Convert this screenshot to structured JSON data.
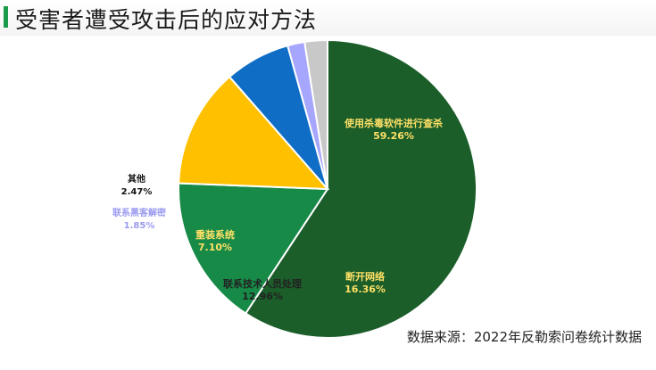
{
  "header": {
    "title": "受害者遭受攻击后的应对方法",
    "accent_color": "#1a9b4a"
  },
  "footer": {
    "source": "数据来源：2022年反勒索问卷统计数据"
  },
  "chart_data": {
    "type": "pie",
    "slices": [
      {
        "label": "使用杀毒软件进行查杀",
        "value": 59.26,
        "value_text": "59.26%",
        "color": "#1b5e2a",
        "text_color": "#ffe066"
      },
      {
        "label": "断开网络",
        "value": 16.36,
        "value_text": "16.36%",
        "color": "#178a48",
        "text_color": "#ffe066"
      },
      {
        "label": "联系技术人员处理",
        "value": 12.96,
        "value_text": "12.96%",
        "color": "#ffc000",
        "text_color": "#222222"
      },
      {
        "label": "重装系统",
        "value": 7.1,
        "value_text": "7.10%",
        "color": "#0f6dc6",
        "text_color": "#ffe066"
      },
      {
        "label": "联系黑客解密",
        "value": 1.85,
        "value_text": "1.85%",
        "color": "#a6a6ff",
        "text_color": "#9a9af0"
      },
      {
        "label": "其他",
        "value": 2.47,
        "value_text": "2.47%",
        "color": "#c8c8c8",
        "text_color": "#111111"
      }
    ],
    "start_angle_deg": 0,
    "direction": "clockwise"
  }
}
